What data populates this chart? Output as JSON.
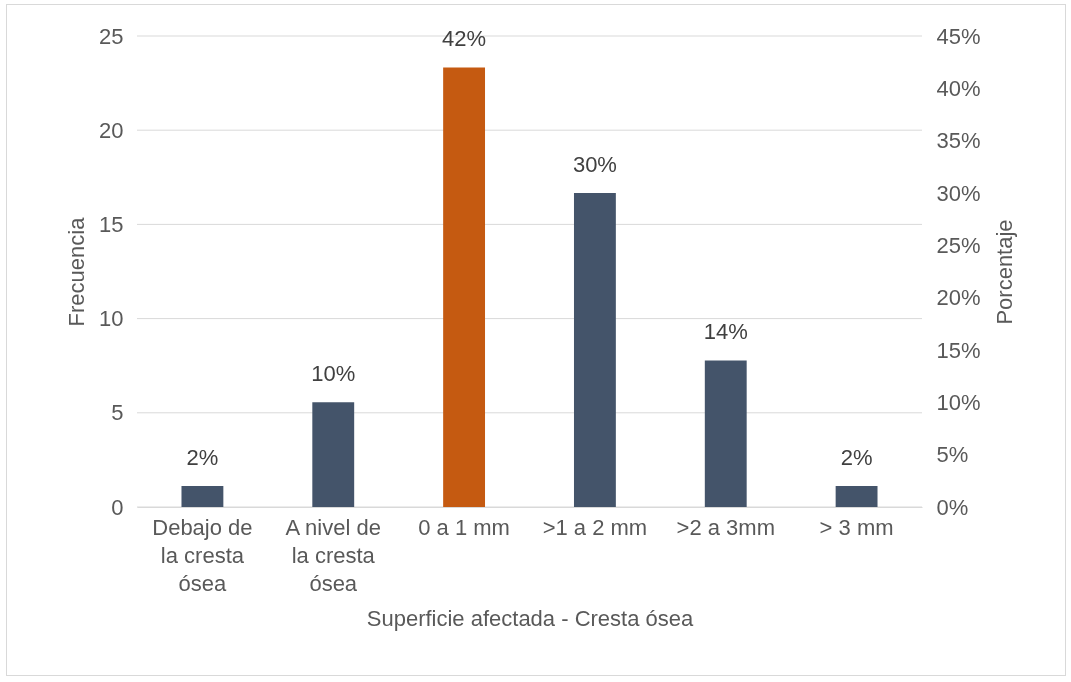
{
  "chart_data": {
    "type": "bar",
    "xlabel": "Superficie afectada - Cresta ósea",
    "ylabel": "Frecuencia",
    "y2label": "Porcentaje",
    "categories": [
      "Debajo de la cresta ósea",
      "A nivel de la cresta ósea",
      "0 a 1 mm",
      ">1 a 2 mm",
      ">2 a 3mm",
      "> 3 mm"
    ],
    "series": [
      {
        "axis": "y2",
        "values": [
          2,
          10,
          42,
          30,
          14,
          2
        ],
        "colors": [
          "#44546a",
          "#44546a",
          "#c55a11",
          "#44546a",
          "#44546a",
          "#44546a"
        ],
        "value_labels": [
          "2%",
          "10%",
          "42%",
          "30%",
          "14%",
          "2%"
        ]
      }
    ],
    "ylim": [
      0,
      25
    ],
    "yticks": [
      0,
      5,
      10,
      15,
      20,
      25
    ],
    "y2lim": [
      0,
      45
    ],
    "y2ticks": [
      {
        "value": 0,
        "label": "0%"
      },
      {
        "value": 5,
        "label": "5%"
      },
      {
        "value": 10,
        "label": "10%"
      },
      {
        "value": 15,
        "label": "15%"
      },
      {
        "value": 20,
        "label": "20%"
      },
      {
        "value": 25,
        "label": "25%"
      },
      {
        "value": 30,
        "label": "30%"
      },
      {
        "value": 35,
        "label": "35%"
      },
      {
        "value": 40,
        "label": "40%"
      },
      {
        "value": 45,
        "label": "45%"
      }
    ],
    "grid": "y"
  }
}
